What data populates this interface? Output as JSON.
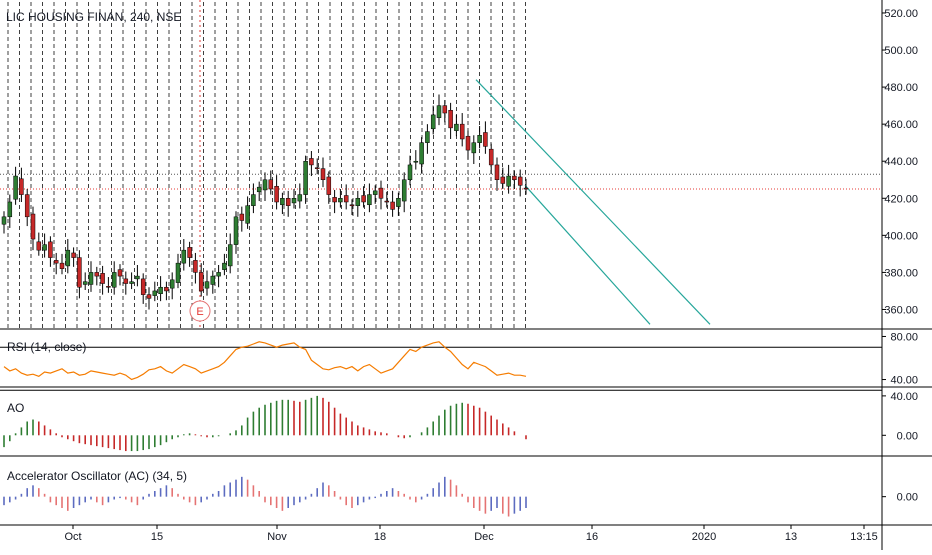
{
  "header": {
    "title": "LIC HOUSING FINAN, 240, NSE"
  },
  "colors": {
    "up": "#2e7d32",
    "down": "#c62828",
    "rsi_line": "#f57c00",
    "channel": "#26a69a",
    "price_line": "#e53935",
    "ac_up": "#5c6bc0",
    "ac_down": "#e57373",
    "grid_dash": "#000000"
  },
  "event_marker": {
    "label": "E"
  },
  "chart_data": [
    {
      "type": "candlestick",
      "ylim": [
        350,
        527
      ],
      "yticks": [
        {
          "value": 360,
          "label": "360.00"
        },
        {
          "value": 380,
          "label": "380.00"
        },
        {
          "value": 400,
          "label": "400.00"
        },
        {
          "value": 420,
          "label": "420.00"
        },
        {
          "value": 440,
          "label": "440.00"
        },
        {
          "value": 460,
          "label": "460.00"
        },
        {
          "value": 480,
          "label": "480.00"
        },
        {
          "value": 500,
          "label": "500.00"
        },
        {
          "value": 520,
          "label": "520.00"
        }
      ],
      "xticks": [
        "Oct",
        "15",
        "Nov",
        "18",
        "Dec",
        "16",
        "2020",
        "13",
        "13:15"
      ],
      "horizontal_levels": [
        433,
        425
      ],
      "last_price": 425,
      "closes": [
        410,
        418,
        432,
        422,
        410,
        398,
        392,
        395,
        388,
        385,
        382,
        392,
        388,
        372,
        375,
        380,
        378,
        374,
        372,
        380,
        378,
        374,
        375,
        378,
        368,
        366,
        370,
        372,
        370,
        376,
        385,
        392,
        388,
        380,
        370,
        375,
        378,
        380,
        385,
        395,
        410,
        408,
        416,
        422,
        426,
        430,
        425,
        418,
        420,
        416,
        420,
        422,
        440,
        438,
        436,
        430,
        422,
        418,
        420,
        418,
        416,
        420,
        418,
        422,
        424,
        420,
        418,
        414,
        420,
        430,
        438,
        440,
        450,
        456,
        465,
        470,
        466,
        458,
        460,
        452,
        446,
        450,
        454,
        448,
        438,
        430,
        428,
        432,
        430,
        427,
        425
      ],
      "channel": {
        "upper": [
          [
            476,
            484
          ],
          [
            710,
            352
          ]
        ],
        "lower": [
          [
            525,
            427
          ],
          [
            650,
            352
          ]
        ]
      }
    },
    {
      "type": "line",
      "title": "RSI (14, close)",
      "ylim": [
        34,
        86
      ],
      "yticks": [
        {
          "value": 40,
          "label": "40.00"
        },
        {
          "value": 80,
          "label": "80.00"
        }
      ],
      "bands": [
        70,
        30
      ],
      "series": [
        {
          "values": [
            52,
            48,
            50,
            46,
            44,
            45,
            43,
            47,
            46,
            48,
            50,
            46,
            47,
            44,
            45,
            48,
            47,
            46,
            45,
            44,
            46,
            44,
            40,
            42,
            45,
            49,
            50,
            52,
            48,
            46,
            50,
            54,
            52,
            50,
            46,
            48,
            50,
            52,
            56,
            62,
            68,
            70,
            71,
            73,
            75,
            74,
            72,
            70,
            72,
            73,
            74,
            70,
            68,
            58,
            54,
            50,
            49,
            51,
            52,
            50,
            52,
            48,
            52,
            54,
            50,
            46,
            48,
            50,
            56,
            62,
            68,
            66,
            70,
            72,
            74,
            75,
            70,
            66,
            60,
            54,
            50,
            56,
            54,
            52,
            48,
            44,
            45,
            46,
            44,
            44,
            43
          ]
        }
      ]
    },
    {
      "type": "bar",
      "title": "AO",
      "ylim": [
        -20,
        48
      ],
      "yticks": [
        {
          "value": 0,
          "label": "0.00"
        },
        {
          "value": 40,
          "label": "40.00"
        }
      ],
      "values": [
        -12,
        -6,
        2,
        8,
        14,
        16,
        14,
        10,
        6,
        2,
        -2,
        -4,
        -6,
        -8,
        -9,
        -10,
        -11,
        -12,
        -13,
        -14,
        -15,
        -16,
        -16,
        -16,
        -15,
        -14,
        -12,
        -10,
        -7,
        -4,
        -2,
        1,
        2,
        1,
        -1,
        -2,
        -2,
        -1,
        0,
        2,
        5,
        10,
        18,
        24,
        28,
        31,
        33,
        35,
        36,
        36,
        35,
        34,
        36,
        38,
        40,
        38,
        34,
        28,
        22,
        18,
        14,
        10,
        8,
        6,
        4,
        3,
        2,
        0,
        -2,
        -3,
        -2,
        0,
        3,
        8,
        14,
        20,
        26,
        30,
        32,
        33,
        32,
        30,
        28,
        24,
        20,
        16,
        12,
        8,
        4,
        0,
        -4
      ]
    },
    {
      "type": "bar",
      "title": "Accelerator Oscillator (AC) (34, 5)",
      "ylim": [
        -20,
        28
      ],
      "yticks": [
        {
          "value": 0,
          "label": "0.00"
        }
      ],
      "values": [
        -6,
        -4,
        -2,
        2,
        6,
        8,
        6,
        2,
        -4,
        -6,
        -8,
        -10,
        -8,
        -6,
        -4,
        -2,
        -4,
        -6,
        -4,
        -2,
        -1,
        -2,
        -4,
        -6,
        -2,
        2,
        4,
        6,
        8,
        6,
        2,
        -2,
        -4,
        -6,
        -4,
        -2,
        2,
        4,
        8,
        10,
        12,
        14,
        12,
        8,
        4,
        -4,
        -6,
        -8,
        -10,
        -8,
        -6,
        -4,
        -2,
        2,
        6,
        10,
        8,
        4,
        -2,
        -6,
        -8,
        -6,
        -4,
        -2,
        -1,
        2,
        4,
        6,
        4,
        2,
        -2,
        -4,
        -2,
        2,
        6,
        10,
        14,
        12,
        8,
        2,
        -4,
        -8,
        -10,
        -12,
        -10,
        -8,
        -12,
        -14,
        -12,
        -10,
        -8
      ]
    }
  ]
}
